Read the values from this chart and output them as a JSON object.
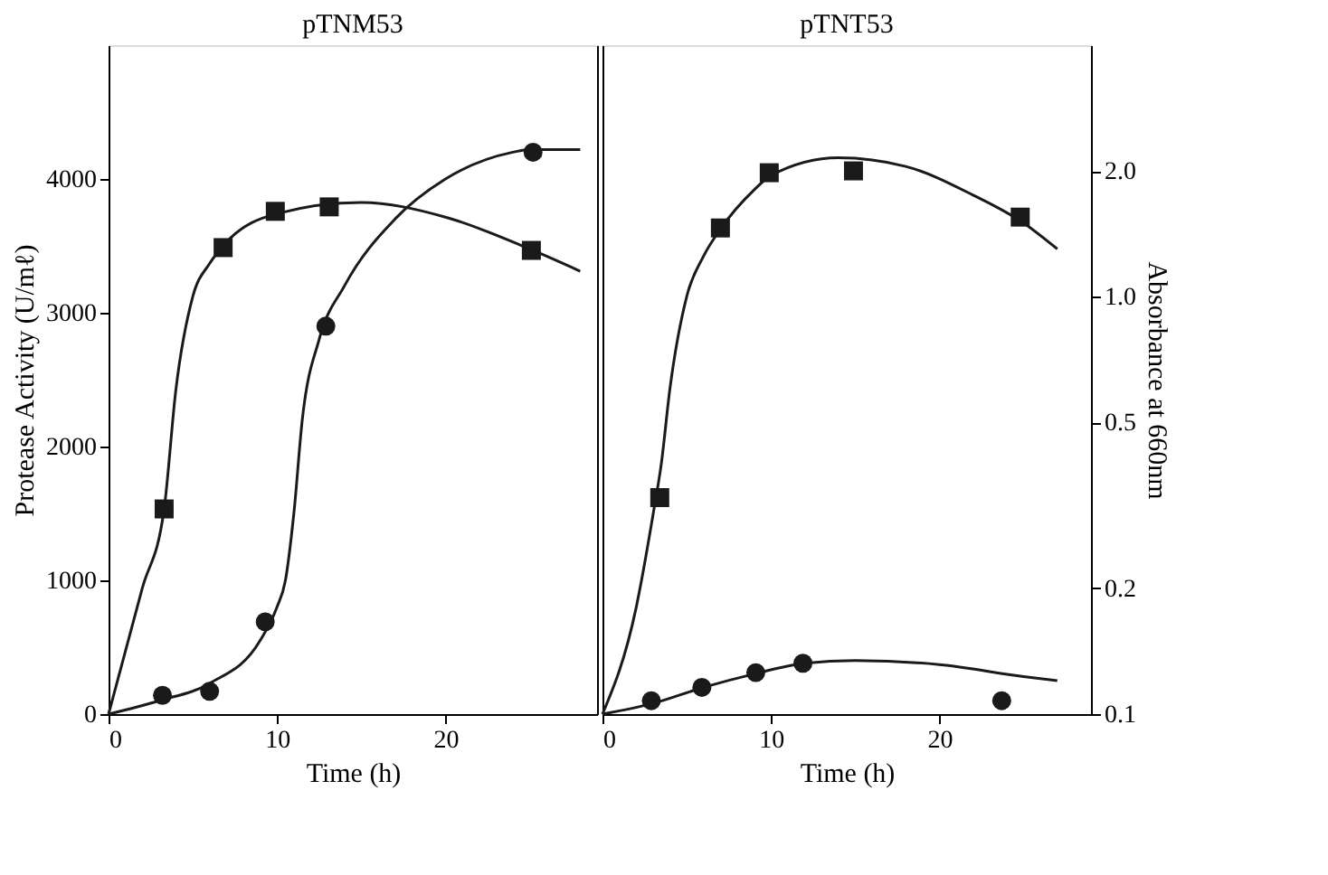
{
  "chart_data": [
    {
      "type": "scatter",
      "title": "pTNM53",
      "xlabel": "Time (h)",
      "ylabel": "Protease Activity (U/mℓ)",
      "xlim": [
        0,
        29
      ],
      "xticks": [
        0,
        10,
        20
      ],
      "ylim": [
        0,
        5000
      ],
      "yticks": [
        0,
        1000,
        2000,
        3000,
        4000
      ],
      "y2lim": [
        0.1,
        4
      ],
      "log": "y2",
      "tick_labels": [
        "x",
        "y"
      ],
      "grid": false,
      "series": [
        {
          "marker": "circle",
          "color": "#1a1a1a",
          "x": [
            3.2,
            6.0,
            9.3,
            12.9,
            25.2
          ],
          "values": [
            140,
            170,
            690,
            2900,
            4200
          ]
        },
        {
          "marker": "square",
          "axis": "y2",
          "color": "#1a1a1a",
          "x": [
            3.3,
            6.8,
            9.9,
            13.1,
            25.1
          ],
          "values": [
            0.31,
            1.31,
            1.6,
            1.64,
            1.29
          ]
        },
        {
          "type": "line",
          "marker": "none",
          "color": "#1a1a1a",
          "x": [
            0,
            3,
            6,
            9,
            10,
            10.5,
            11,
            11.5,
            12.5,
            14,
            17,
            20,
            24,
            25,
            28
          ],
          "values": [
            0,
            100,
            230,
            550,
            800,
            1000,
            1500,
            2200,
            2800,
            3200,
            3700,
            4000,
            4200,
            4220,
            4220
          ]
        },
        {
          "type": "line",
          "marker": "none",
          "axis": "y2",
          "color": "#1a1a1a",
          "x": [
            0,
            2,
            3.3,
            4,
            5,
            6,
            7,
            10,
            15,
            20,
            25,
            28
          ],
          "values": [
            0.1,
            0.2,
            0.31,
            0.6,
            1.0,
            1.2,
            1.35,
            1.58,
            1.68,
            1.55,
            1.3,
            1.15
          ]
        }
      ]
    },
    {
      "type": "scatter",
      "title": "pTNT53",
      "xlabel": "Time (h)",
      "y2label": "Absorbance at 660nm",
      "xlim": [
        0,
        29
      ],
      "xticks": [
        0,
        10,
        20
      ],
      "ylim": [
        0,
        5000
      ],
      "y2lim": [
        0.1,
        4
      ],
      "y2ticks": [
        0.1,
        0.2,
        0.5,
        {
          "value": 1,
          "label": "1.0"
        },
        {
          "value": 2,
          "label": "2.0"
        }
      ],
      "log": "y2",
      "tick_labels": [
        "x",
        "y2"
      ],
      "grid": false,
      "series": [
        {
          "marker": "circle",
          "color": "#1a1a1a",
          "x": [
            2.9,
            5.9,
            9.1,
            11.9,
            23.7
          ],
          "values": [
            100,
            200,
            310,
            380,
            100
          ]
        },
        {
          "marker": "square",
          "axis": "y2",
          "color": "#1a1a1a",
          "x": [
            3.4,
            7.0,
            9.9,
            14.9,
            24.8
          ],
          "values": [
            0.33,
            1.46,
            1.98,
            2.0,
            1.55
          ]
        },
        {
          "type": "line",
          "marker": "none",
          "color": "#1a1a1a",
          "x": [
            0,
            3,
            6,
            9,
            12,
            15,
            20,
            25,
            27
          ],
          "values": [
            0,
            80,
            200,
            300,
            380,
            400,
            370,
            280,
            250
          ]
        },
        {
          "type": "line",
          "marker": "none",
          "axis": "y2",
          "color": "#1a1a1a",
          "x": [
            0,
            2,
            3,
            3.5,
            4,
            5,
            6,
            7,
            9,
            10,
            14,
            18,
            22,
            25,
            27
          ],
          "values": [
            0.1,
            0.18,
            0.3,
            0.4,
            0.6,
            1.0,
            1.25,
            1.45,
            1.8,
            1.95,
            2.15,
            2.05,
            1.75,
            1.5,
            1.3
          ]
        }
      ]
    }
  ]
}
